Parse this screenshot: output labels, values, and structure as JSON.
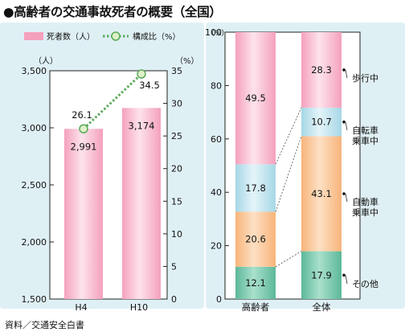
{
  "title": "●高齢者の交通事故死者の概要（全国）",
  "source": "資料／交通安全白書",
  "colors": {
    "panel_bg": "#dff0f5",
    "pink": "#f5a0bd",
    "pink_light": "#fde3ec",
    "line_green": "#5aaa5a",
    "marker_fill": "#dff0c8",
    "blue": "#a6d7e6",
    "orange": "#f8b47a",
    "teal": "#5cb89a",
    "frame": "#222222"
  },
  "chart_data": [
    {
      "type": "bar",
      "legend": {
        "bar_label": "死者数（人）",
        "line_label": "構成比（%）"
      },
      "categories": [
        "H4",
        "H10"
      ],
      "series": [
        {
          "name": "死者数（人）",
          "type": "bar",
          "axis": "left",
          "values": [
            2991,
            3174
          ],
          "value_labels": [
            "2,991",
            "3,174"
          ]
        },
        {
          "name": "構成比（%）",
          "type": "line",
          "axis": "right",
          "values": [
            26.1,
            34.5
          ],
          "value_labels": [
            "26.1",
            "34.5"
          ]
        }
      ],
      "left_axis": {
        "unit": "（人）",
        "ylim": [
          1500,
          3500
        ],
        "ticks": [
          1500,
          2000,
          2500,
          3000,
          3500
        ],
        "tick_labels": [
          "1,500",
          "2,000",
          "2,500",
          "3,000",
          "3,500"
        ]
      },
      "right_axis": {
        "unit": "（%）",
        "ylim": [
          0,
          35
        ],
        "ticks": [
          0,
          5,
          10,
          15,
          20,
          25,
          30,
          35
        ],
        "tick_labels": [
          "0",
          "5",
          "10",
          "15",
          "20",
          "25",
          "30",
          "35"
        ]
      }
    },
    {
      "type": "bar",
      "stacked": true,
      "categories": [
        "高齢者",
        "全体"
      ],
      "yaxis": {
        "unit": "（%）",
        "ylim": [
          0,
          100
        ],
        "ticks": [
          0,
          20,
          40,
          60,
          80,
          100
        ],
        "tick_labels": [
          "0",
          "20",
          "40",
          "60",
          "80",
          "100"
        ]
      },
      "series": [
        {
          "name": "その他",
          "color_key": "teal",
          "values": [
            12.1,
            17.9
          ],
          "value_labels": [
            "12.1",
            "17.9"
          ]
        },
        {
          "name": "自動車乗車中",
          "color_key": "orange",
          "values": [
            20.6,
            43.1
          ],
          "value_labels": [
            "20.6",
            "43.1"
          ]
        },
        {
          "name": "自転車乗車中",
          "color_key": "blue",
          "values": [
            17.8,
            10.7
          ],
          "value_labels": [
            "17.8",
            "10.7"
          ]
        },
        {
          "name": "歩行中",
          "color_key": "pink",
          "values": [
            49.5,
            28.3
          ],
          "value_labels": [
            "49.5",
            "28.3"
          ]
        }
      ],
      "legend_lines": [
        [
          "歩行中"
        ],
        [
          "自転車",
          "乗車中"
        ],
        [
          "自動車",
          "乗車中"
        ],
        [
          "その他"
        ]
      ]
    }
  ]
}
